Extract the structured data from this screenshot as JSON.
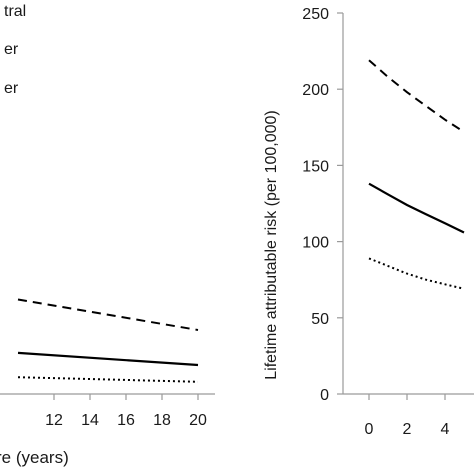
{
  "chart_data": [
    {
      "type": "line",
      "title": "",
      "xlabel": "re (years)",
      "ylabel": "",
      "x": [
        10,
        20
      ],
      "xticks": [
        "12",
        "14",
        "16",
        "18",
        "20"
      ],
      "xtick_values": [
        12,
        14,
        16,
        18,
        20
      ],
      "xlim": [
        10,
        20.8
      ],
      "ylim": [
        0,
        250
      ],
      "grid": false,
      "legend": {
        "placement": "top-left",
        "entries": [
          "tral",
          "er",
          "er"
        ]
      },
      "series": [
        {
          "style": "dashed",
          "x": [
            10,
            20
          ],
          "values": [
            62,
            42
          ]
        },
        {
          "style": "solid",
          "x": [
            10,
            20
          ],
          "values": [
            27,
            19
          ]
        },
        {
          "style": "dotted",
          "x": [
            10,
            20
          ],
          "values": [
            11,
            8
          ]
        }
      ]
    },
    {
      "type": "line",
      "title": "",
      "xlabel": "",
      "ylabel": "Lifetime attributable risk (per 100,000)",
      "yticks": [
        "0",
        "50",
        "100",
        "150",
        "200",
        "250"
      ],
      "ytick_values": [
        0,
        50,
        100,
        150,
        200,
        250
      ],
      "xticks": [
        "0",
        "2",
        "4"
      ],
      "xtick_values": [
        0,
        2,
        4
      ],
      "xlim": [
        -1,
        5
      ],
      "ylim": [
        0,
        250
      ],
      "grid": false,
      "series": [
        {
          "style": "dashed",
          "x": [
            0,
            1,
            2,
            3,
            4,
            5
          ],
          "values": [
            219,
            208,
            198,
            189,
            180,
            172
          ]
        },
        {
          "style": "solid",
          "x": [
            0,
            1,
            2,
            3,
            4,
            5
          ],
          "values": [
            138,
            131,
            124,
            118,
            112,
            106
          ]
        },
        {
          "style": "dotted",
          "x": [
            0,
            1,
            2,
            3,
            4,
            5
          ],
          "values": [
            89,
            84,
            79,
            75,
            72,
            69
          ]
        }
      ]
    }
  ]
}
